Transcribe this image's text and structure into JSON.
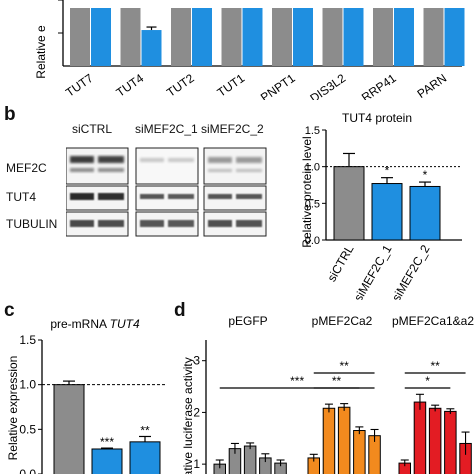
{
  "colors": {
    "gray": "#8c8c8c",
    "blue": "#1f8fe0",
    "orange": "#f28a1e",
    "red": "#e31c23",
    "black": "#000000"
  },
  "panel_a": {
    "ylabel": "Relative e",
    "chart_data": {
      "type": "bar",
      "categories": [
        "TUT7",
        "TUT4",
        "TUT2",
        "TUT1",
        "PNPT1",
        "DIS3L2",
        "RRP41",
        "PARN"
      ],
      "series": [
        {
          "values": [
            1.0,
            1.0,
            1.0,
            1.0,
            1.0,
            1.0,
            1.0,
            1.0
          ]
        },
        {
          "values": [
            1.0,
            0.62,
            1.0,
            1.0,
            1.0,
            1.0,
            1.0,
            1.0
          ]
        }
      ]
    }
  },
  "panel_b": {
    "letter": "b",
    "blot": {
      "lanes": [
        "siCTRL",
        "siMEF2C_1",
        "siMEF2C_2"
      ],
      "rows": [
        "MEF2C",
        "TUT4",
        "TUBULIN"
      ]
    },
    "chart_data": {
      "type": "bar",
      "title": "TUT4 protein",
      "ylabel": "Relative protein level",
      "categories": [
        "siCTRL",
        "siMEF2C_1",
        "siMEF2C_2"
      ],
      "values": [
        1.0,
        0.77,
        0.73
      ],
      "errors": [
        0.18,
        0.08,
        0.06
      ],
      "significance": [
        "",
        "*",
        "*"
      ],
      "yticks": [
        "0.0",
        "0.5",
        "1.0",
        "1.5"
      ],
      "ylim": [
        0,
        1.5
      ],
      "reference_line": 1.0
    }
  },
  "panel_c": {
    "letter": "c",
    "chart_data": {
      "type": "bar",
      "title_plain": "pre-mRNA ",
      "title_italic": "TUT4",
      "ylabel": "Relative expression",
      "values": [
        1.0,
        0.28,
        0.36
      ],
      "errors": [
        0.04,
        0.01,
        0.06
      ],
      "significance": [
        "",
        "***",
        "**"
      ],
      "yticks": [
        "0.0",
        "0.5",
        "1.0",
        "1.5"
      ],
      "ylim": [
        0,
        1.5
      ],
      "reference_line": 1.0
    }
  },
  "panel_d": {
    "letter": "d",
    "chart_data": {
      "type": "bar",
      "ylabel": "Relative luciferase activity",
      "ylabel_visible": "elative luciferase activity",
      "yticks": [
        "1",
        "2",
        "3"
      ],
      "ylim": [
        0.5,
        3.4
      ],
      "groups": [
        {
          "label": "pEGFP",
          "color": "blue_none",
          "values": [
            1.0,
            1.3,
            1.35,
            1.12,
            1.02
          ],
          "errors": [
            0.08,
            0.1,
            0.06,
            0.08,
            0.06
          ]
        },
        {
          "label": "pMEF2Ca2",
          "values": [
            1.12,
            2.08,
            2.1,
            1.65,
            1.55
          ],
          "errors": [
            0.07,
            0.08,
            0.07,
            0.07,
            0.12
          ]
        },
        {
          "label": "pMEF2Ca1&a2",
          "values": [
            1.02,
            2.2,
            2.08,
            2.02,
            1.4
          ],
          "errors": [
            0.06,
            0.15,
            0.06,
            0.05,
            0.22
          ]
        }
      ],
      "significance": [
        "***",
        "**",
        "**",
        "**",
        "*"
      ]
    }
  }
}
